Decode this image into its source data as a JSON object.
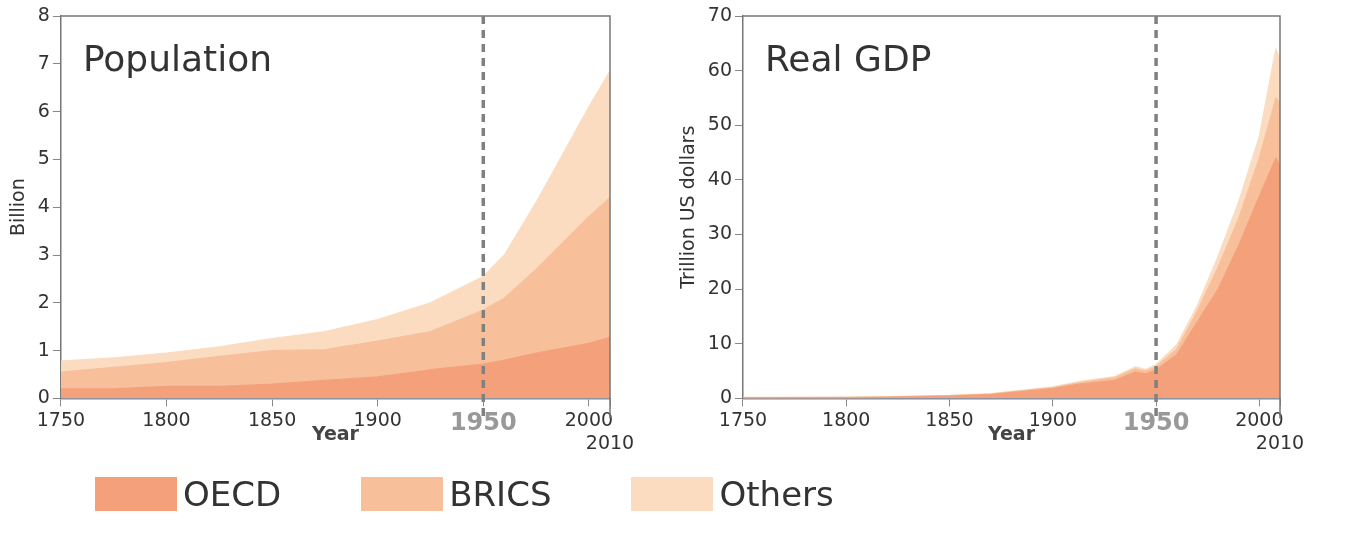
{
  "chart_data": [
    {
      "type": "area",
      "title": "Population",
      "stacked": true,
      "xlabel": "Year",
      "ylabel": "Billion",
      "x": [
        1750,
        1775,
        1800,
        1825,
        1850,
        1875,
        1900,
        1925,
        1950,
        1960,
        1975,
        2000,
        2010
      ],
      "series": [
        {
          "name": "OECD",
          "color": "#f4a07a",
          "values": [
            0.2,
            0.2,
            0.25,
            0.25,
            0.3,
            0.38,
            0.45,
            0.6,
            0.72,
            0.8,
            0.95,
            1.15,
            1.28
          ]
        },
        {
          "name": "BRICS",
          "color": "#f7c09a",
          "values": [
            0.35,
            0.45,
            0.5,
            0.63,
            0.7,
            0.64,
            0.75,
            0.8,
            1.13,
            1.3,
            1.75,
            2.65,
            2.92
          ]
        },
        {
          "name": "Others",
          "color": "#fbdcc0",
          "values": [
            0.23,
            0.2,
            0.2,
            0.2,
            0.25,
            0.38,
            0.45,
            0.6,
            0.7,
            0.9,
            1.4,
            2.3,
            2.65
          ]
        }
      ],
      "annotations": [
        "2010"
      ],
      "xlim": [
        1750,
        2010
      ],
      "xticks": [
        1750,
        1800,
        1850,
        1900,
        1950,
        2000,
        {
          "value": 2010,
          "label": null
        }
      ],
      "ylim": [
        0,
        8
      ],
      "yticks": [
        0,
        1,
        2,
        3,
        4,
        5,
        6,
        7,
        8
      ],
      "ref_lines": [
        {
          "axis": "x",
          "value": 1950,
          "color": "#808080",
          "line_style": "dashed"
        }
      ],
      "grid": false,
      "legend": "bottom"
    },
    {
      "type": "area",
      "title": "Real GDP",
      "stacked": true,
      "xlabel": "Year",
      "ylabel": "Trillion US dollars",
      "x": [
        1750,
        1800,
        1820,
        1850,
        1870,
        1900,
        1913,
        1930,
        1940,
        1945,
        1950,
        1960,
        1970,
        1980,
        1990,
        2000,
        2008,
        2010
      ],
      "series": [
        {
          "color": "#f4a07a",
          "values": [
            0.1,
            0.1,
            0.2,
            0.4,
            0.7,
            1.8,
            2.6,
            3.3,
            4.8,
            4.5,
            5.2,
            8,
            14,
            20,
            28,
            37,
            44,
            42.5
          ]
        },
        {
          "color": "#f7c09a",
          "values": [
            0.05,
            0.1,
            0.1,
            0.1,
            0.1,
            0.2,
            0.3,
            0.5,
            0.6,
            0.5,
            0.6,
            1,
            2,
            4,
            5,
            7,
            11,
            11.5
          ]
        },
        {
          "color": "#fbdcc0",
          "values": [
            0.05,
            0.05,
            0.05,
            0.05,
            0.1,
            0.1,
            0.2,
            0.2,
            0.4,
            0.3,
            0.4,
            0.8,
            1,
            2,
            3,
            4,
            9,
            8
          ]
        }
      ],
      "annotations": [
        "2010"
      ],
      "xlim": [
        1750,
        2010
      ],
      "xticks": [
        1750,
        1800,
        1850,
        1900,
        1950,
        2000,
        {
          "value": 2010,
          "label": null
        }
      ],
      "ylim": [
        0,
        70
      ],
      "yticks": [
        0,
        10,
        20,
        30,
        40,
        50,
        60,
        70
      ],
      "ref_lines": [
        {
          "axis": "x",
          "value": 1950,
          "color": "#808080",
          "line_style": "dashed"
        }
      ],
      "grid": false
    }
  ]
}
